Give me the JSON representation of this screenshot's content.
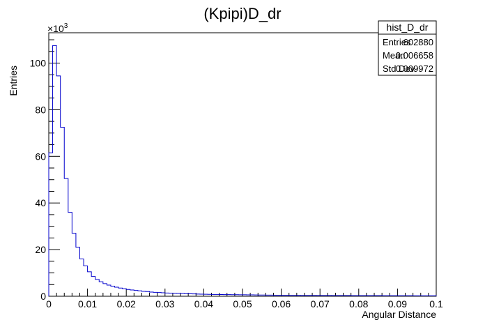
{
  "chart_data": {
    "type": "bar",
    "title": "(Kpipi)D_dr",
    "xlabel": "Angular Distance",
    "ylabel": "Entries",
    "y_multiplier": "×10",
    "y_exponent": "3",
    "xlim": [
      0,
      0.1
    ],
    "ylim": [
      0,
      113
    ],
    "x_ticks": [
      "0",
      "0.01",
      "0.02",
      "0.03",
      "0.04",
      "0.05",
      "0.06",
      "0.07",
      "0.08",
      "0.09",
      "0.1"
    ],
    "y_ticks": [
      "0",
      "20",
      "40",
      "60",
      "80",
      "100"
    ],
    "bin_width": 0.001,
    "values": [
      61.5,
      107.5,
      94.5,
      72.5,
      50.5,
      36,
      27,
      21,
      16,
      13,
      10.5,
      8.5,
      7.2,
      6.2,
      5.4,
      4.8,
      4.3,
      3.9,
      3.5,
      3.2,
      2.9,
      2.7,
      2.5,
      2.3,
      2.1,
      2.0,
      1.8,
      1.7,
      1.6,
      1.5,
      1.4,
      1.3,
      1.25,
      1.2,
      1.15,
      1.1,
      1.05,
      1.0,
      0.95,
      0.9,
      0.85,
      0.82,
      0.8,
      0.78,
      0.75,
      0.72,
      0.7,
      0.68,
      0.66,
      0.64,
      0.62,
      0.6,
      0.58,
      0.56,
      0.54,
      0.52,
      0.5,
      0.48,
      0.46,
      0.45,
      0.44,
      0.43,
      0.42,
      0.41,
      0.4,
      0.39,
      0.38,
      0.37,
      0.36,
      0.35,
      0.34,
      0.33,
      0.32,
      0.31,
      0.3,
      0.3,
      0.29,
      0.29,
      0.28,
      0.28,
      0.27,
      0.27,
      0.26,
      0.26,
      0.25,
      0.25,
      0.24,
      0.24,
      0.23,
      0.23,
      0.22,
      0.22,
      0.21,
      0.21,
      0.2,
      0.2,
      0.2,
      0.19,
      0.19,
      0.19
    ],
    "line_color": "#0000cc"
  },
  "stats_box": {
    "title": "hist_D_dr",
    "rows": [
      {
        "label": "Entries",
        "value": "602880"
      },
      {
        "label": "Mean",
        "value": "0.006658"
      },
      {
        "label": "Std Dev",
        "value": "0.009972"
      }
    ]
  }
}
